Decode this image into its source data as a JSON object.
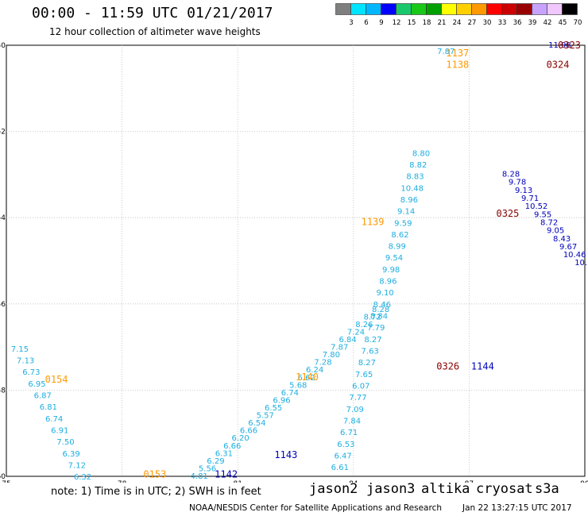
{
  "header": {
    "title": "00:00 - 11:59 UTC 01/21/2017",
    "subtitle": "12 hour collection of altimeter wave heights"
  },
  "scale": {
    "labels": [
      "3",
      "6",
      "9",
      "12",
      "15",
      "18",
      "21",
      "24",
      "27",
      "30",
      "33",
      "36",
      "39",
      "42",
      "45",
      "70",
      "(ft)"
    ],
    "colors": [
      "#7f7f7f",
      "#00e5ff",
      "#00b7ff",
      "#0000ff",
      "#19c86a",
      "#19c819",
      "#00a000",
      "#ffff00",
      "#ffd000",
      "#ff9900",
      "#ff0000",
      "#cc0000",
      "#990000",
      "#c7a2ff",
      "#f0c7ff",
      "#000000"
    ]
  },
  "map": {
    "x_ticks": [
      "75",
      "78",
      "81",
      "84",
      "87",
      "90"
    ],
    "y_ticks": [
      "-50",
      "-52",
      "-54",
      "-56",
      "-58",
      "-60"
    ],
    "lon_range": [
      75,
      90
    ],
    "lat_range": [
      -60,
      -50
    ],
    "colors": {
      "cyan": "#1eaee0",
      "blue": "#0000bb",
      "orange": "#ff9900",
      "darkred": "#8b0000",
      "green": "#49e049",
      "teal": "#17c6c6"
    },
    "pass_labels": [
      {
        "text": "0154",
        "lon": 76.3,
        "lat": -57.75,
        "color": "orange"
      },
      {
        "text": "0153",
        "lon": 78.85,
        "lat": -59.95,
        "color": "orange"
      },
      {
        "text": "1142",
        "lon": 80.7,
        "lat": -59.95,
        "color": "blue"
      },
      {
        "text": "1143",
        "lon": 82.25,
        "lat": -59.5,
        "color": "blue"
      },
      {
        "text": "1140",
        "lon": 82.8,
        "lat": -57.7,
        "color": "orange"
      },
      {
        "text": "1139",
        "lon": 84.5,
        "lat": -54.1,
        "color": "orange"
      },
      {
        "text": "1137",
        "lon": 86.7,
        "lat": -50.18,
        "color": "orange"
      },
      {
        "text": "1138",
        "lon": 86.7,
        "lat": -50.45,
        "color": "orange"
      },
      {
        "text": "0325",
        "lon": 88.0,
        "lat": -53.9,
        "color": "darkred"
      },
      {
        "text": "0323",
        "lon": 89.6,
        "lat": -50.0,
        "color": "darkred"
      },
      {
        "text": "0324",
        "lon": 89.3,
        "lat": -50.45,
        "color": "darkred"
      },
      {
        "text": "0326",
        "lon": 86.45,
        "lat": -57.45,
        "color": "darkred"
      },
      {
        "text": "1144",
        "lon": 87.35,
        "lat": -57.45,
        "color": "blue"
      }
    ],
    "tracks": [
      {
        "color": "cyan",
        "lon0": 75.35,
        "lat0": -57.05,
        "dlon": 0.148,
        "dlat": -0.27,
        "values": [
          "7.15",
          "7.13",
          "6.73",
          "6.95",
          "6.87",
          "6.81",
          "6.74",
          "6.91",
          "7.50",
          "6.39",
          "7.12",
          "6.32",
          "6.70",
          "6.85"
        ]
      },
      {
        "color": "cyan",
        "lon0": 86.4,
        "lat0": -50.15,
        "dlon": -0.128,
        "dlat": 0.2255,
        "values": [
          "7.87",
          "7.40",
          "7.90",
          "7.64",
          "7.56",
          "7.68",
          "7.23",
          "8.16",
          "7.98",
          "8.06",
          "7.91",
          "8.59",
          "7.01",
          "7.97",
          "8.40",
          "8.16",
          "7.70",
          "7.84",
          "7.33",
          "7.76",
          "7.52",
          "6.91",
          "7.72",
          "7.01",
          "7.11",
          "7.23",
          "6.75",
          "7.52",
          "6.37",
          "6.87",
          "6.58",
          "6.72",
          "6.75",
          "7.15",
          "6.62",
          "6.43",
          "6.42",
          "6.92",
          "6.31",
          "6.16",
          "6.29",
          "5.56",
          "4.81"
        ]
      },
      {
        "color": "cyan",
        "lon0": 80.0,
        "lat0": -60.0,
        "dlon": 0.214,
        "dlat": 0.176,
        "values": [
          "4.81",
          "5.56",
          "6.29",
          "6.31",
          "6.66",
          "6.20",
          "6.66",
          "6.54",
          "5.57",
          "6.55",
          "6.96",
          "6.74",
          "5.68",
          "6.62",
          "6.24",
          "7.28",
          "7.80",
          "7.87",
          "6.84",
          "7.24",
          "8.26",
          "8.72",
          "8.28"
        ]
      },
      {
        "color": "cyan",
        "lon0": 83.65,
        "lat0": -59.8,
        "dlon": 0.078,
        "dlat": 0.27,
        "values": [
          "6.61",
          "6.47",
          "6.53",
          "6.71",
          "7.84",
          "7.09",
          "7.77",
          "6.07",
          "7.65",
          "8.27",
          "7.63",
          "8.27",
          "7.79",
          "8.84",
          "8.46",
          "9.10",
          "8.96",
          "9.98",
          "9.54",
          "8.99",
          "8.62",
          "9.59",
          "9.14",
          "8.96",
          "10.48",
          "8.83",
          "8.82",
          "8.80"
        ]
      },
      {
        "color": "blue",
        "lon0": 89.35,
        "lat0": -50.0,
        "dlon": -0.096,
        "dlat": 0.2265,
        "values": [
          "11.98",
          "10.62",
          "10.58",
          "9.42",
          "10.73",
          "11.96",
          "11.82",
          "10.05",
          "11.60",
          "9.27",
          "10.17",
          "11.31",
          "12.43",
          "10.21",
          "8.57",
          "9.23",
          "9.10"
        ]
      },
      {
        "color": "blue",
        "lon0": 89.9,
        "lat0": -55.05,
        "dlon": -0.165,
        "dlat": 0.187,
        "values": [
          "10.",
          "10.46",
          "9.67",
          "8.43",
          "9.05",
          "8.72",
          "9.55",
          "10.52",
          "9.71",
          "9.13",
          "9.78",
          "8.28"
        ]
      }
    ],
    "special_colors": {
      "12.43": "green"
    }
  },
  "footer": {
    "note": "note: 1) Time is in UTC; 2) SWH is in feet",
    "satellites": [
      {
        "name": "jason2",
        "color": "#0000dd"
      },
      {
        "name": "jason3",
        "color": "#00a000"
      },
      {
        "name": "altika",
        "color": "#ff9900"
      },
      {
        "name": "cryosat",
        "color": "#ee0000"
      },
      {
        "name": "s3a",
        "color": "#8b0000"
      }
    ],
    "credit": "NOAA/NESDIS Center for Satellite Applications and Research",
    "timestamp": "Jan 22 13:27:15 UTC 2017"
  }
}
